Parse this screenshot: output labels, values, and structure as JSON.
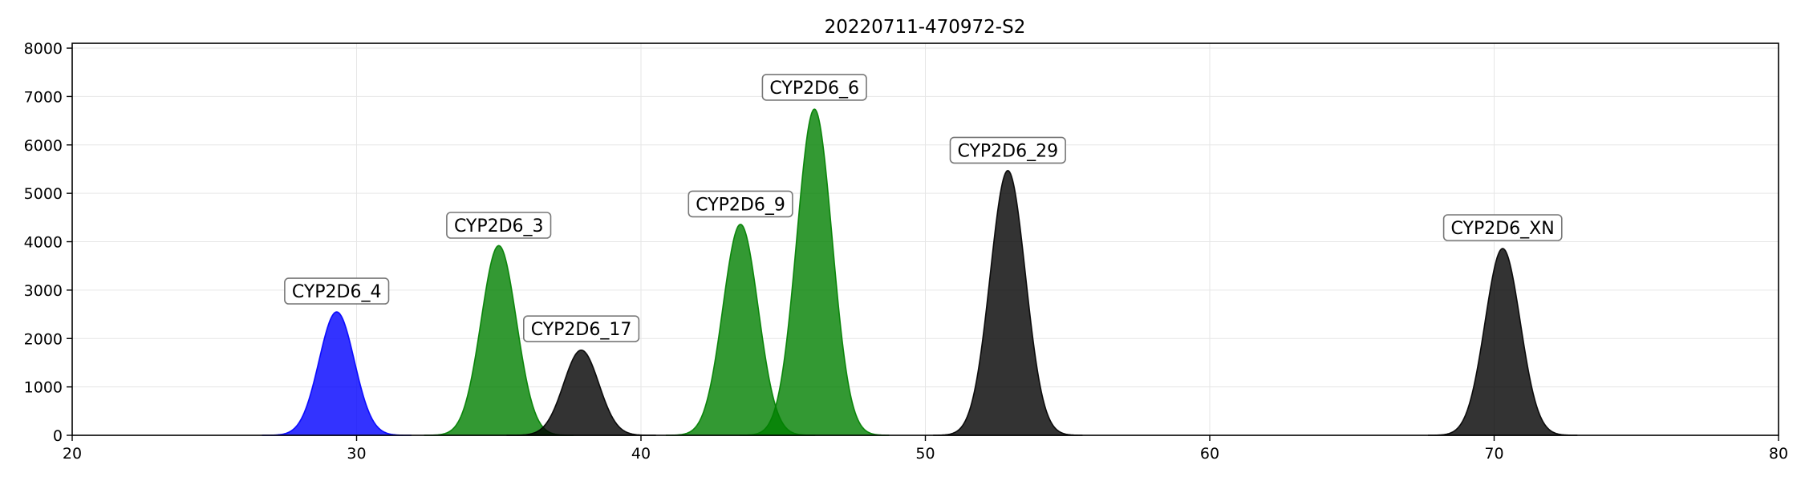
{
  "chart_data": {
    "type": "area",
    "title": "20220711-470972-S2",
    "xlabel": "",
    "ylabel": "",
    "xlim": [
      20,
      80
    ],
    "ylim": [
      0,
      8100
    ],
    "xticks": [
      20,
      30,
      40,
      50,
      60,
      70,
      80
    ],
    "yticks": [
      0,
      1000,
      2000,
      3000,
      4000,
      5000,
      6000,
      7000,
      8000
    ],
    "grid": true,
    "legend": "none",
    "series": [
      {
        "name": "CYP2D6_4",
        "center": 29.3,
        "height": 2550,
        "sigma": 0.62,
        "color": "#0000ff",
        "alpha": 0.8,
        "label_x": 29.3,
        "label_y": 2980
      },
      {
        "name": "CYP2D6_3",
        "center": 35.0,
        "height": 3920,
        "sigma": 0.62,
        "color": "#008000",
        "alpha": 0.8,
        "label_x": 35.0,
        "label_y": 4340
      },
      {
        "name": "CYP2D6_17",
        "center": 37.9,
        "height": 1760,
        "sigma": 0.62,
        "color": "#000000",
        "alpha": 0.8,
        "label_x": 37.9,
        "label_y": 2200
      },
      {
        "name": "CYP2D6_9",
        "center": 43.5,
        "height": 4360,
        "sigma": 0.62,
        "color": "#008000",
        "alpha": 0.8,
        "label_x": 43.5,
        "label_y": 4780
      },
      {
        "name": "CYP2D6_6",
        "center": 46.1,
        "height": 6740,
        "sigma": 0.62,
        "color": "#008000",
        "alpha": 0.8,
        "label_x": 46.1,
        "label_y": 7190
      },
      {
        "name": "CYP2D6_29",
        "center": 52.9,
        "height": 5470,
        "sigma": 0.62,
        "color": "#000000",
        "alpha": 0.8,
        "label_x": 52.9,
        "label_y": 5890
      },
      {
        "name": "CYP2D6_XN",
        "center": 70.3,
        "height": 3860,
        "sigma": 0.62,
        "color": "#000000",
        "alpha": 0.8,
        "label_x": 70.3,
        "label_y": 4290
      }
    ]
  }
}
